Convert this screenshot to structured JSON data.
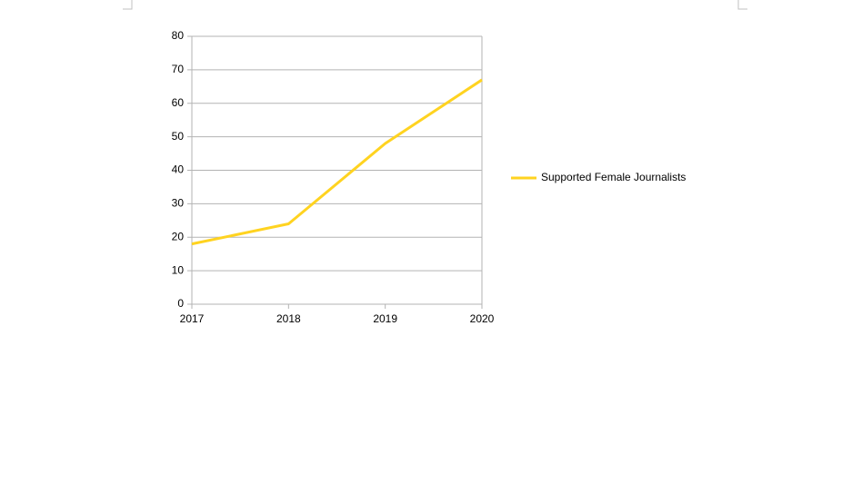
{
  "chart_data": {
    "type": "line",
    "x": [
      2017,
      2018,
      2019,
      2020
    ],
    "series": [
      {
        "name": "Supported Female Journalists",
        "color": "#ffd320",
        "values": [
          18,
          24,
          48,
          67
        ]
      }
    ],
    "xlim": [
      2017,
      2020
    ],
    "xticks": [
      2017,
      2018,
      2019,
      2020
    ],
    "ylim": [
      0,
      80
    ],
    "yticks": [
      0,
      10,
      20,
      30,
      40,
      50,
      60,
      70,
      80
    ],
    "grid": true,
    "legend": "right"
  }
}
